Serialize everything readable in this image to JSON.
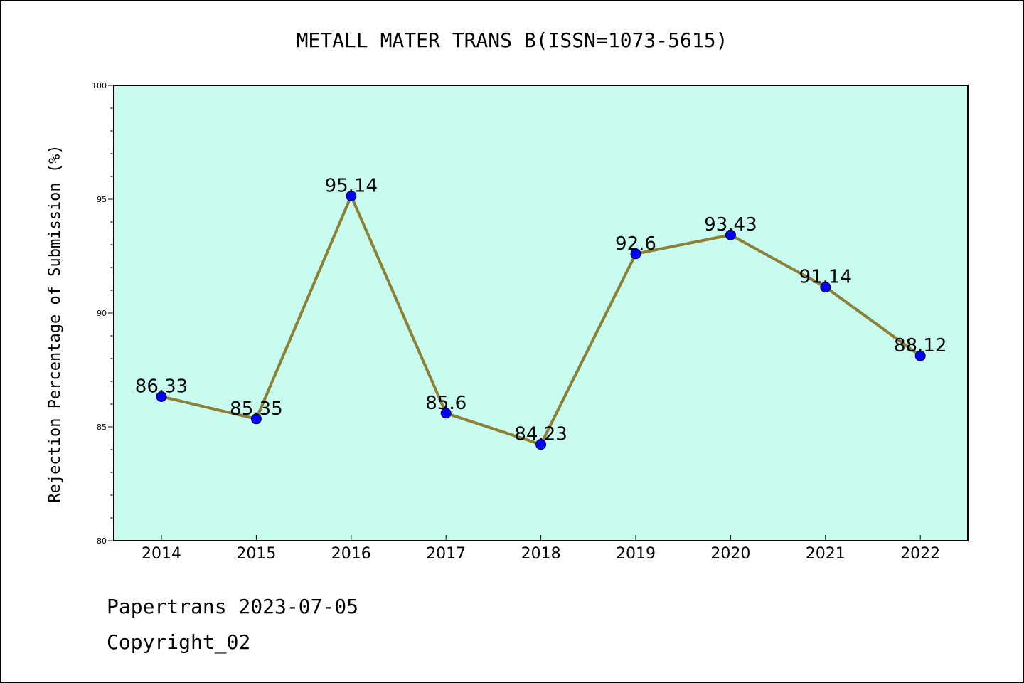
{
  "chart_data": {
    "type": "line",
    "title": "METALL MATER TRANS B(ISSN=1073-5615)",
    "xlabel": "",
    "ylabel": "Rejection Percentage of Submission (%)",
    "categories": [
      "2014",
      "2015",
      "2016",
      "2017",
      "2018",
      "2019",
      "2020",
      "2021",
      "2022"
    ],
    "values": [
      86.33,
      85.35,
      95.14,
      85.6,
      84.23,
      92.6,
      93.43,
      91.14,
      88.12
    ],
    "data_labels": [
      "86.33",
      "85.35",
      "95.14",
      "85.6",
      "84.23",
      "92.6",
      "93.43",
      "91.14",
      "88.12"
    ],
    "ylim": [
      80,
      100
    ],
    "yticks": [
      "80",
      "85",
      "90",
      "95",
      "100"
    ],
    "grid": false,
    "colors": {
      "plot_background": "#c8fcee",
      "line": "#8b8036",
      "marker": "#0000ff"
    }
  },
  "footer": {
    "line1": "Papertrans 2023-07-05",
    "line2": "Copyright_02"
  }
}
